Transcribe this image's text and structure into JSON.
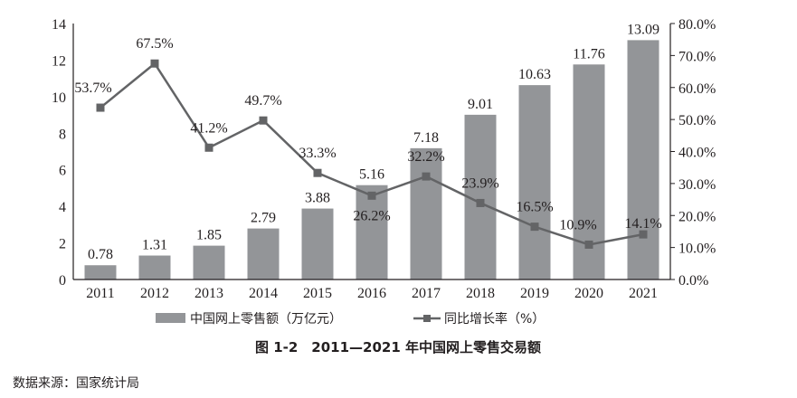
{
  "chart_data": {
    "type": "bar+line",
    "title": "图 1-2　2011—2021 年中国网上零售交易额",
    "source": "数据来源：国家统计局",
    "categories": [
      "2011",
      "2012",
      "2013",
      "2014",
      "2015",
      "2016",
      "2017",
      "2018",
      "2019",
      "2020",
      "2021"
    ],
    "series": [
      {
        "name": "中国网上零售额（万亿元）",
        "type": "bar",
        "axis": "left",
        "values": [
          0.78,
          1.31,
          1.85,
          2.79,
          3.88,
          5.16,
          7.18,
          9.01,
          10.63,
          11.76,
          13.09
        ],
        "labels": [
          "0.78",
          "1.31",
          "1.85",
          "2.79",
          "3.88",
          "5.16",
          "7.18",
          "9.01",
          "10.63",
          "11.76",
          "13.09"
        ],
        "color": "#939598"
      },
      {
        "name": "同比增长率（%）",
        "type": "line",
        "axis": "right",
        "values": [
          53.7,
          67.5,
          41.2,
          49.7,
          33.3,
          26.2,
          32.2,
          23.9,
          16.5,
          10.9,
          14.1
        ],
        "labels": [
          "53.7%",
          "67.5%",
          "41.2%",
          "49.7%",
          "33.3%",
          "26.2%",
          "32.2%",
          "23.9%",
          "16.5%",
          "10.9%",
          "14.1%"
        ],
        "color": "#636466"
      }
    ],
    "ylim": [
      0,
      14
    ],
    "yticks": [
      "0",
      "2",
      "4",
      "6",
      "8",
      "10",
      "12",
      "14"
    ],
    "y2lim": [
      0,
      80
    ],
    "y2ticks": [
      "0.0%",
      "10.0%",
      "20.0%",
      "30.0%",
      "40.0%",
      "50.0%",
      "60.0%",
      "70.0%",
      "80.0%"
    ],
    "legend": "bottom",
    "grid": false
  }
}
